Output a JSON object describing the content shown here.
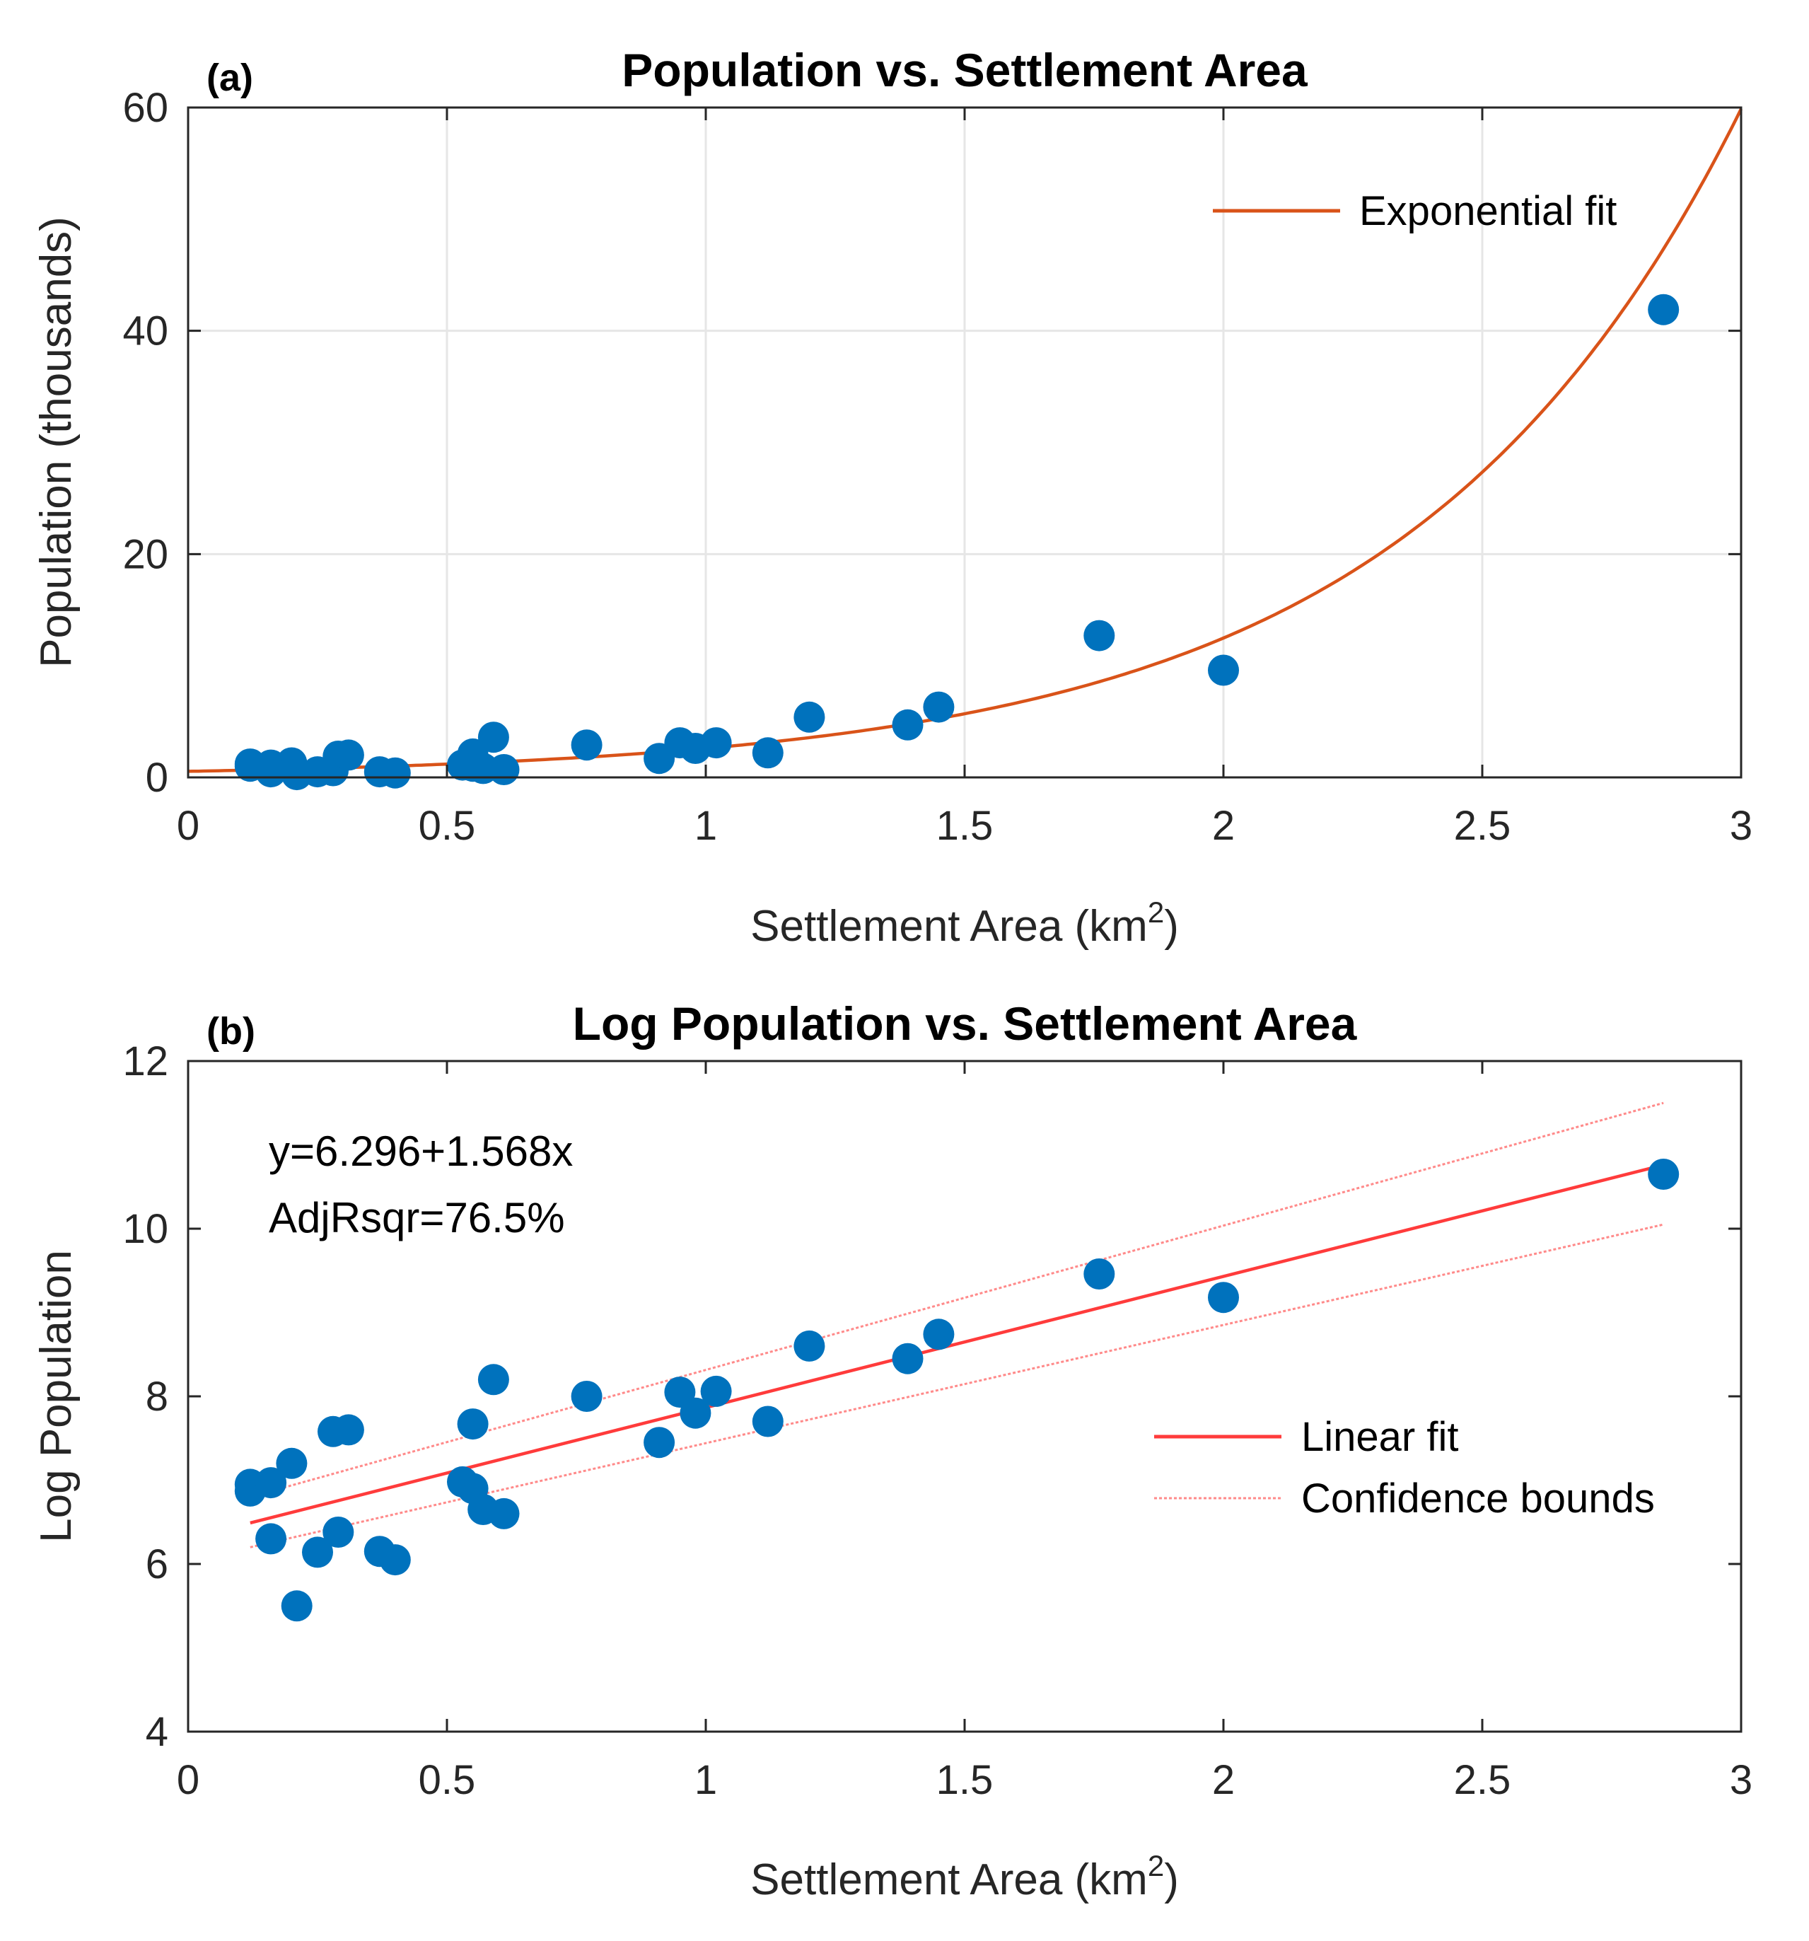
{
  "colors": {
    "points": "#0072BD",
    "exp_fit": "#D95319",
    "linear_fit": "#FF3B3B",
    "bounds": "#FF8A8A"
  },
  "chart_data": [
    {
      "panel_label": "(a)",
      "type": "scatter",
      "title": "Population vs. Settlement Area",
      "xlabel": "Settlement Area (km",
      "xlabel_sup": "2",
      "xlabel_end": ")",
      "ylabel": "Population (thousands)",
      "xlim": [
        0,
        3
      ],
      "ylim": [
        0,
        60
      ],
      "xticks": [
        0,
        0.5,
        1,
        1.5,
        2,
        2.5,
        3
      ],
      "xtick_labels": [
        "0",
        "0.5",
        "1",
        "1.5",
        "2",
        "2.5",
        "3"
      ],
      "yticks": [
        0,
        20,
        40,
        60
      ],
      "ytick_labels": [
        "0",
        "20",
        "40",
        "60"
      ],
      "grid": true,
      "legend_position": "top-right",
      "series": [
        {
          "name": "Population",
          "x": [
            0.12,
            0.16,
            0.2,
            0.21,
            0.25,
            0.28,
            0.29,
            0.31,
            0.37,
            0.4,
            0.53,
            0.55,
            0.55,
            0.57,
            0.59,
            0.61,
            0.77,
            0.91,
            0.95,
            0.98,
            1.02,
            1.12,
            1.2,
            1.39,
            1.45,
            1.76,
            2.0,
            2.85,
            0.12,
            0.16
          ],
          "y": [
            1.0,
            1.1,
            1.3,
            0.25,
            0.5,
            0.6,
            1.9,
            2.0,
            0.5,
            0.4,
            1.1,
            2.1,
            1.0,
            0.8,
            3.6,
            0.7,
            2.9,
            1.7,
            3.1,
            2.6,
            3.1,
            2.2,
            5.4,
            4.7,
            6.3,
            12.7,
            9.6,
            41.9,
            1.2,
            0.5
          ]
        },
        {
          "name": "Exponential fit",
          "type": "line",
          "formula": "exp(6.296+1.568x)/1000",
          "x_range": [
            0,
            3
          ]
        }
      ],
      "legend": [
        "Exponential fit"
      ]
    },
    {
      "panel_label": "(b)",
      "type": "scatter",
      "title": "Log Population vs. Settlement Area",
      "xlabel": "Settlement Area (km",
      "xlabel_sup": "2",
      "xlabel_end": ")",
      "ylabel": "Log Population",
      "xlim": [
        0,
        3
      ],
      "ylim": [
        4,
        12
      ],
      "xticks": [
        0,
        0.5,
        1,
        1.5,
        2,
        2.5,
        3
      ],
      "xtick_labels": [
        "0",
        "0.5",
        "1",
        "1.5",
        "2",
        "2.5",
        "3"
      ],
      "yticks": [
        4,
        6,
        8,
        10,
        12
      ],
      "ytick_labels": [
        "4",
        "6",
        "8",
        "10",
        "12"
      ],
      "grid": false,
      "legend_position": "center-right",
      "annotation_lines": [
        "y=6.296+1.568x",
        "AdjRsqr=76.5%"
      ],
      "series": [
        {
          "name": "Log Population",
          "x": [
            0.12,
            0.12,
            0.16,
            0.16,
            0.2,
            0.21,
            0.25,
            0.28,
            0.29,
            0.31,
            0.37,
            0.4,
            0.53,
            0.55,
            0.55,
            0.57,
            0.59,
            0.61,
            0.77,
            0.91,
            0.95,
            0.98,
            1.02,
            1.12,
            1.2,
            1.39,
            1.45,
            1.76,
            2.0,
            2.85
          ],
          "y": [
            6.95,
            6.87,
            6.97,
            6.3,
            7.2,
            5.5,
            6.14,
            7.58,
            6.38,
            7.6,
            6.15,
            6.05,
            6.98,
            7.67,
            6.9,
            6.65,
            8.2,
            6.6,
            8.0,
            7.45,
            8.05,
            7.8,
            8.06,
            7.7,
            8.6,
            8.45,
            8.74,
            9.46,
            9.18,
            10.65
          ]
        },
        {
          "name": "Linear fit",
          "type": "line",
          "x": [
            0.12,
            2.85
          ],
          "y": [
            6.49,
            10.76
          ]
        },
        {
          "name": "Confidence bounds",
          "type": "line",
          "upper": {
            "x": [
              0.12,
              2.85
            ],
            "y": [
              6.8,
              11.5
            ]
          },
          "lower": {
            "x": [
              0.12,
              2.85
            ],
            "y": [
              6.2,
              10.05
            ]
          }
        }
      ],
      "legend": [
        "Linear fit",
        "Confidence bounds"
      ]
    }
  ]
}
